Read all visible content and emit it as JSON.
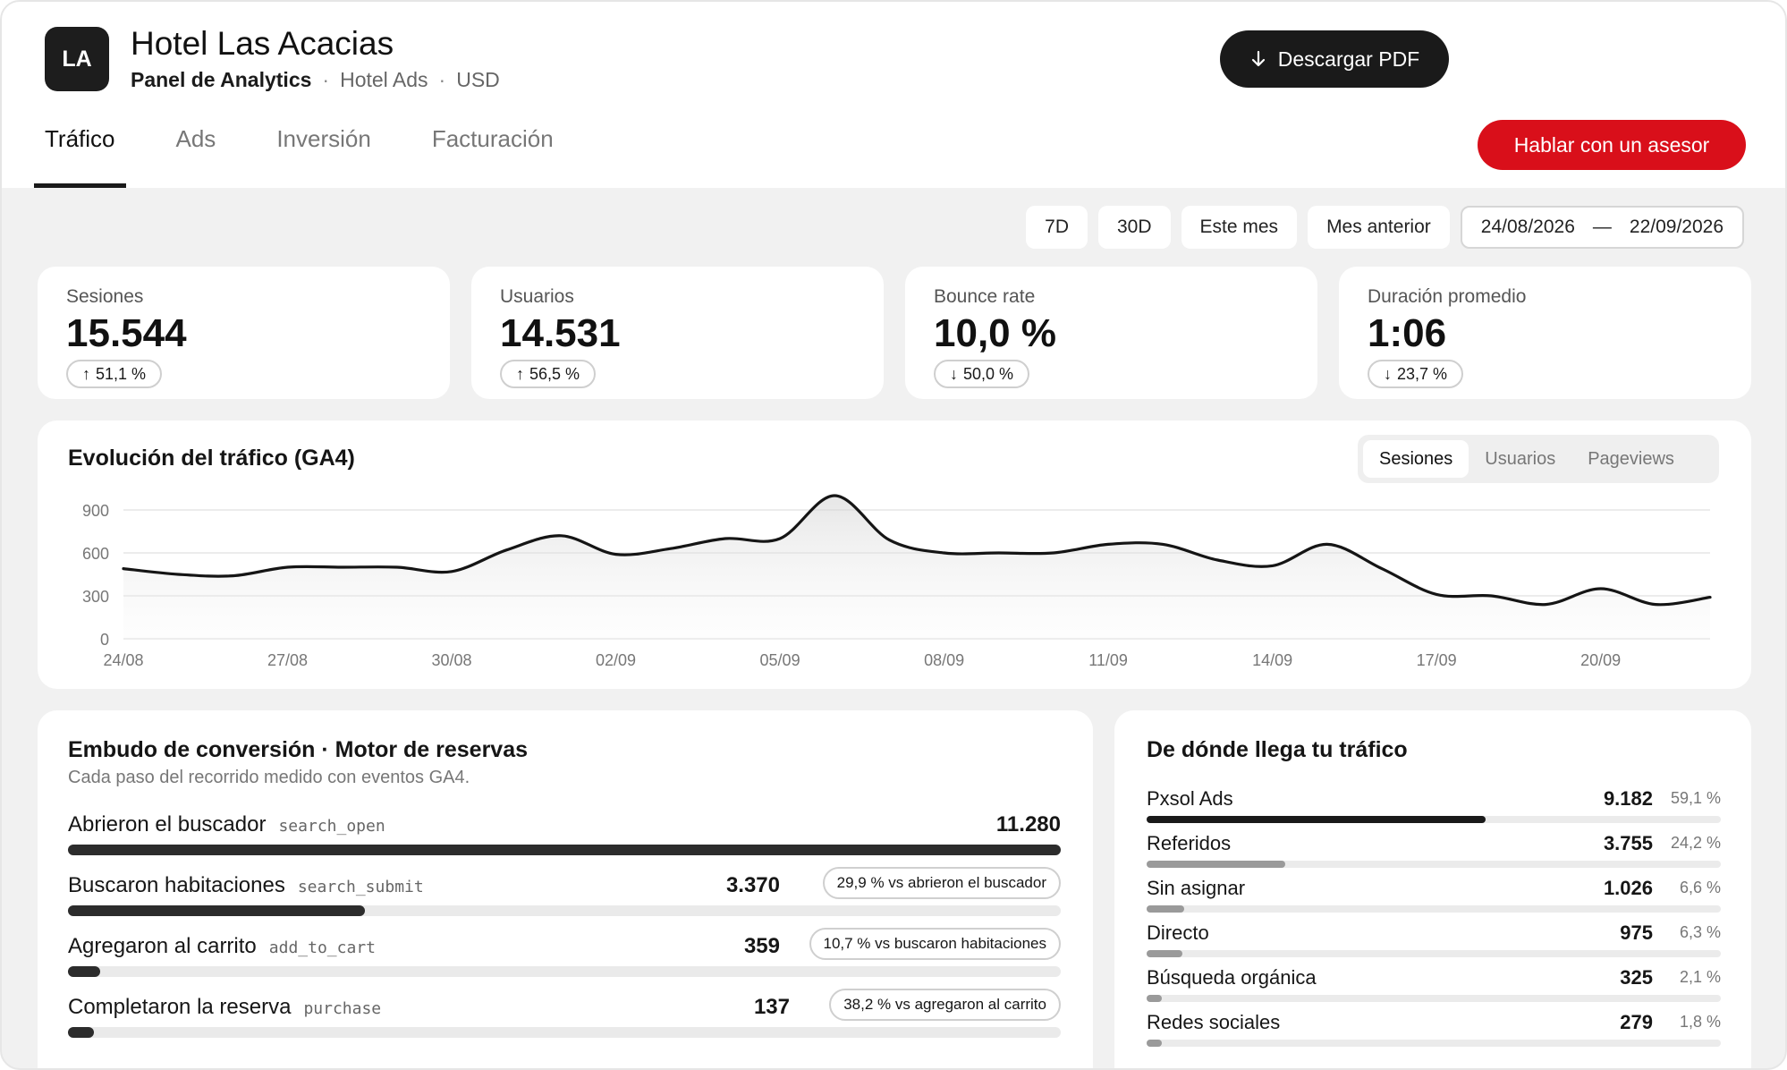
{
  "header": {
    "logo_initials": "LA",
    "title": "Hotel Las Acacias",
    "subtitle_main": "Panel de Analytics",
    "subtitle_source": "Hotel Ads",
    "subtitle_currency": "USD",
    "separator": "·",
    "download_label": "Descargar PDF",
    "advisor_label": "Hablar con un asesor",
    "advisor_color": "#d90f1a"
  },
  "tabs": [
    {
      "label": "Tráfico",
      "active": true
    },
    {
      "label": "Ads",
      "active": false
    },
    {
      "label": "Inversión",
      "active": false
    },
    {
      "label": "Facturación",
      "active": false
    }
  ],
  "filters": {
    "presets": [
      "7D",
      "30D",
      "Este mes",
      "Mes anterior"
    ],
    "date_from": "24/08/2026",
    "date_sep": "—",
    "date_to": "22/09/2026"
  },
  "kpis": [
    {
      "label": "Sesiones",
      "value": "15.544",
      "delta": "51,1 %",
      "direction": "up"
    },
    {
      "label": "Usuarios",
      "value": "14.531",
      "delta": "56,5 %",
      "direction": "up"
    },
    {
      "label": "Bounce rate",
      "value": "10,0 %",
      "delta": "50,0 %",
      "direction": "down"
    },
    {
      "label": "Duración promedio",
      "value": "1:06",
      "delta": "23,7 %",
      "direction": "down"
    }
  ],
  "traffic_chart": {
    "title": "Evolución del tráfico (GA4)",
    "toggles": [
      "Sesiones",
      "Usuarios",
      "Pageviews"
    ],
    "active_toggle": "Sesiones"
  },
  "chart_data": {
    "type": "line",
    "title": "Evolución del tráfico (GA4)",
    "ylim": [
      0,
      1000
    ],
    "yticks": [
      0,
      300,
      600,
      900
    ],
    "xtick_labels": [
      "24/08",
      "27/08",
      "30/08",
      "02/09",
      "05/09",
      "08/09",
      "11/09",
      "14/09",
      "17/09",
      "20/09"
    ],
    "x": [
      "24/08",
      "25/08",
      "26/08",
      "27/08",
      "28/08",
      "29/08",
      "30/08",
      "31/08",
      "01/09",
      "02/09",
      "03/09",
      "04/09",
      "05/09",
      "06/09",
      "07/09",
      "08/09",
      "09/09",
      "10/09",
      "11/09",
      "12/09",
      "13/09",
      "14/09",
      "15/09",
      "16/09",
      "17/09",
      "18/09",
      "19/09",
      "20/09",
      "21/09",
      "22/09"
    ],
    "series": [
      {
        "values": [
          490,
          450,
          440,
          500,
          500,
          500,
          470,
          620,
          720,
          590,
          630,
          700,
          700,
          1000,
          690,
          600,
          600,
          600,
          660,
          660,
          550,
          510,
          660,
          490,
          310,
          300,
          240,
          350,
          240,
          290
        ]
      }
    ],
    "grid": true,
    "area_fill": true
  },
  "funnel": {
    "title": "Embudo de conversión · Motor de reservas",
    "subtitle": "Cada paso del recorrido medido con eventos GA4.",
    "steps": [
      {
        "name": "Abrieron el buscador",
        "event": "search_open",
        "value": "11.280",
        "share": 1.0,
        "comparison": ""
      },
      {
        "name": "Buscaron habitaciones",
        "event": "search_submit",
        "value": "3.370",
        "share": 0.299,
        "comparison": "29,9 % vs abrieron el buscador"
      },
      {
        "name": "Agregaron al carrito",
        "event": "add_to_cart",
        "value": "359",
        "share": 0.032,
        "comparison": "10,7 % vs buscaron habitaciones"
      },
      {
        "name": "Completaron la reserva",
        "event": "purchase",
        "value": "137",
        "share": 0.012,
        "comparison": "38,2 % vs agregaron al carrito"
      }
    ]
  },
  "sources": {
    "title": "De dónde llega tu tráfico",
    "items": [
      {
        "name": "Pxsol Ads",
        "value": "9.182",
        "pct": "59,1 %",
        "share": 0.591,
        "dark": true
      },
      {
        "name": "Referidos",
        "value": "3.755",
        "pct": "24,2 %",
        "share": 0.242,
        "dark": false
      },
      {
        "name": "Sin asignar",
        "value": "1.026",
        "pct": "6,6 %",
        "share": 0.066,
        "dark": false
      },
      {
        "name": "Directo",
        "value": "975",
        "pct": "6,3 %",
        "share": 0.063,
        "dark": false
      },
      {
        "name": "Búsqueda orgánica",
        "value": "325",
        "pct": "2,1 %",
        "share": 0.021,
        "dark": false
      },
      {
        "name": "Redes sociales",
        "value": "279",
        "pct": "1,8 %",
        "share": 0.018,
        "dark": false
      }
    ]
  }
}
